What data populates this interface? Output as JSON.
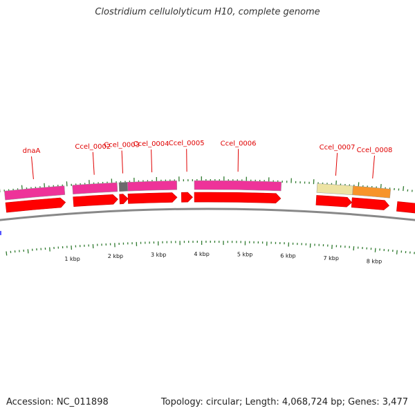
{
  "title": "Clostridium cellulolyticum H10, complete genome",
  "footer": {
    "accession": "Accession: NC_011898",
    "summary": "Topology: circular; Length: 4,068,724 bp; Genes: 3,477"
  },
  "genes": [
    {
      "label": "dnaA",
      "start": -0.4,
      "end": 0.94,
      "cds_color": "#ee3399"
    },
    {
      "label": "Ccel_0002",
      "start": 1.12,
      "end": 2.12,
      "cds_color": "#ee3399"
    },
    {
      "label": "Ccel_0003",
      "start": 2.16,
      "end": 2.35,
      "cds_color": "#6b6b6b"
    },
    {
      "label": "Ccel_0004",
      "start": 2.35,
      "end": 3.45,
      "cds_color": "#ee3399"
    },
    {
      "label": "Ccel_0005",
      "start": 3.55,
      "end": 3.8,
      "cds_color": null
    },
    {
      "label": "Ccel_0006",
      "start": 3.84,
      "end": 5.78,
      "cds_color": "#ee3399"
    },
    {
      "label": "Ccel_0007",
      "start": 6.58,
      "end": 7.38,
      "cds_color": "#ede3a3"
    },
    {
      "label": "Ccel_0008",
      "start": 7.38,
      "end": 8.22,
      "cds_color": "#f7942a"
    },
    {
      "label": "",
      "start": 8.4,
      "end": 9.2,
      "cds_color": null
    }
  ],
  "kbp_labels": [
    "1 kbp",
    "2 kbp",
    "3 kbp",
    "4 kbp",
    "5 kbp",
    "6 kbp",
    "7 kbp",
    "8 kbp"
  ],
  "colors": {
    "gene_arrow": "#ff0000",
    "gene_arrow_edge": "#cc0000",
    "backbone": "#888888",
    "tick": "#2f7a2f",
    "label": "#e00000"
  }
}
